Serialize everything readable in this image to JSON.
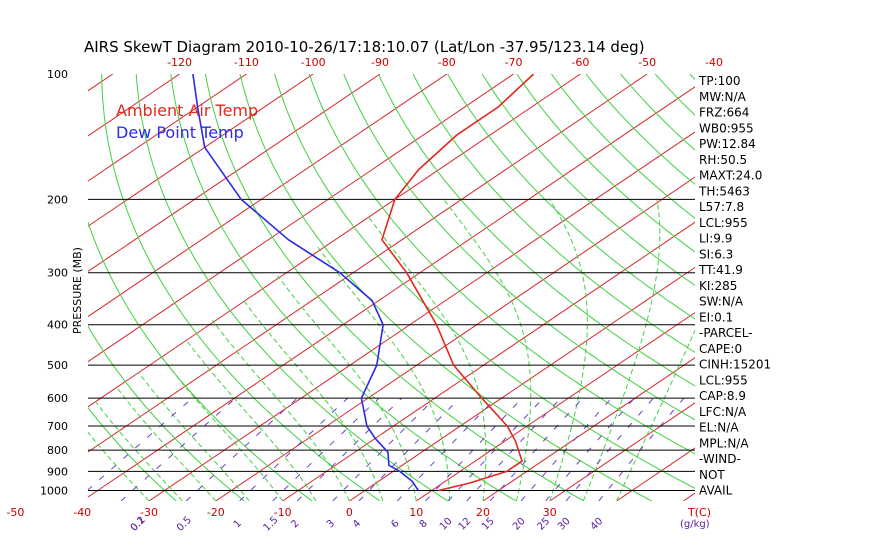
{
  "chart_data": {
    "type": "line",
    "title": "AIRS SkewT Diagram 2010-10-26/17:18:10.07 (Lat/Lon -37.95/123.14 deg)",
    "ylabel": "PRESSURE (MB)",
    "y_scale": "log",
    "ylim": [
      1060,
      100
    ],
    "pressure_ticks": [
      {
        "p": 100,
        "label": "100"
      },
      {
        "p": 200,
        "label": "200"
      },
      {
        "p": 300,
        "label": "300"
      },
      {
        "p": 400,
        "label": "400"
      },
      {
        "p": 500,
        "label": "500"
      },
      {
        "p": 600,
        "label": "600"
      },
      {
        "p": 700,
        "label": "700"
      },
      {
        "p": 800,
        "label": "800"
      },
      {
        "p": 900,
        "label": "900"
      },
      {
        "p": 1000,
        "label": "1000"
      }
    ],
    "temp_ticks_bottom": [
      -50,
      -40,
      -30,
      -20,
      -10,
      0,
      10,
      20,
      30
    ],
    "temp_ticks_top": [
      -120,
      -110,
      -100,
      -90,
      -80,
      -70,
      -60,
      -50,
      -40
    ],
    "temp_unit_label": "T(C)",
    "mixing_ratio_ticks": [
      "0.1",
      "0.2",
      "0.5",
      "1",
      "1.5",
      "2",
      "3",
      "4",
      "6",
      "8",
      "10",
      "12",
      "15",
      "20",
      "25",
      "30",
      "40"
    ],
    "mixing_ratio_unit_label": "(g/kg)",
    "legend": [
      {
        "label": "Ambient Air Temp",
        "color": "#e0291f"
      },
      {
        "label": "Dew Point Temp",
        "color": "#2a2ae8"
      }
    ],
    "series": [
      {
        "name": "Ambient Air Temp",
        "color": "#e0291f",
        "points": [
          [
            1000,
            11
          ],
          [
            960,
            14
          ],
          [
            900,
            17
          ],
          [
            850,
            17
          ],
          [
            760,
            11.5
          ],
          [
            700,
            7
          ],
          [
            600,
            -3
          ],
          [
            500,
            -14.5
          ],
          [
            400,
            -26
          ],
          [
            300,
            -42
          ],
          [
            250,
            -53
          ],
          [
            200,
            -60
          ],
          [
            170,
            -63
          ],
          [
            140,
            -65
          ],
          [
            120,
            -65
          ],
          [
            100,
            -67
          ]
        ]
      },
      {
        "name": "Dew Point Temp",
        "color": "#2a2ae8",
        "points": [
          [
            1000,
            8
          ],
          [
            950,
            5
          ],
          [
            900,
            1
          ],
          [
            870,
            -2
          ],
          [
            810,
            -5
          ],
          [
            750,
            -10
          ],
          [
            700,
            -14
          ],
          [
            600,
            -21
          ],
          [
            500,
            -26
          ],
          [
            400,
            -34
          ],
          [
            350,
            -41
          ],
          [
            300,
            -52
          ],
          [
            250,
            -67
          ],
          [
            200,
            -83
          ],
          [
            150,
            -100
          ],
          [
            120,
            -110
          ],
          [
            100,
            -118
          ]
        ]
      }
    ]
  },
  "stats": [
    "TP:100",
    "MW:N/A",
    "FRZ:664",
    "WB0:955",
    "PW:12.84",
    "RH:50.5",
    "MAXT:24.0",
    "TH:5463",
    "L57:7.8",
    "LCL:955",
    "LI:9.9",
    "SI:6.3",
    "TT:41.9",
    "KI:285",
    "SW:N/A",
    "EI:0.1",
    "-PARCEL-",
    "CAPE:0",
    "CINH:15201",
    "LCL:955",
    "CAP:8.9",
    "LFC:N/A",
    "EL:N/A",
    "MPL:N/A",
    "-WIND-",
    "NOT",
    "AVAIL"
  ]
}
